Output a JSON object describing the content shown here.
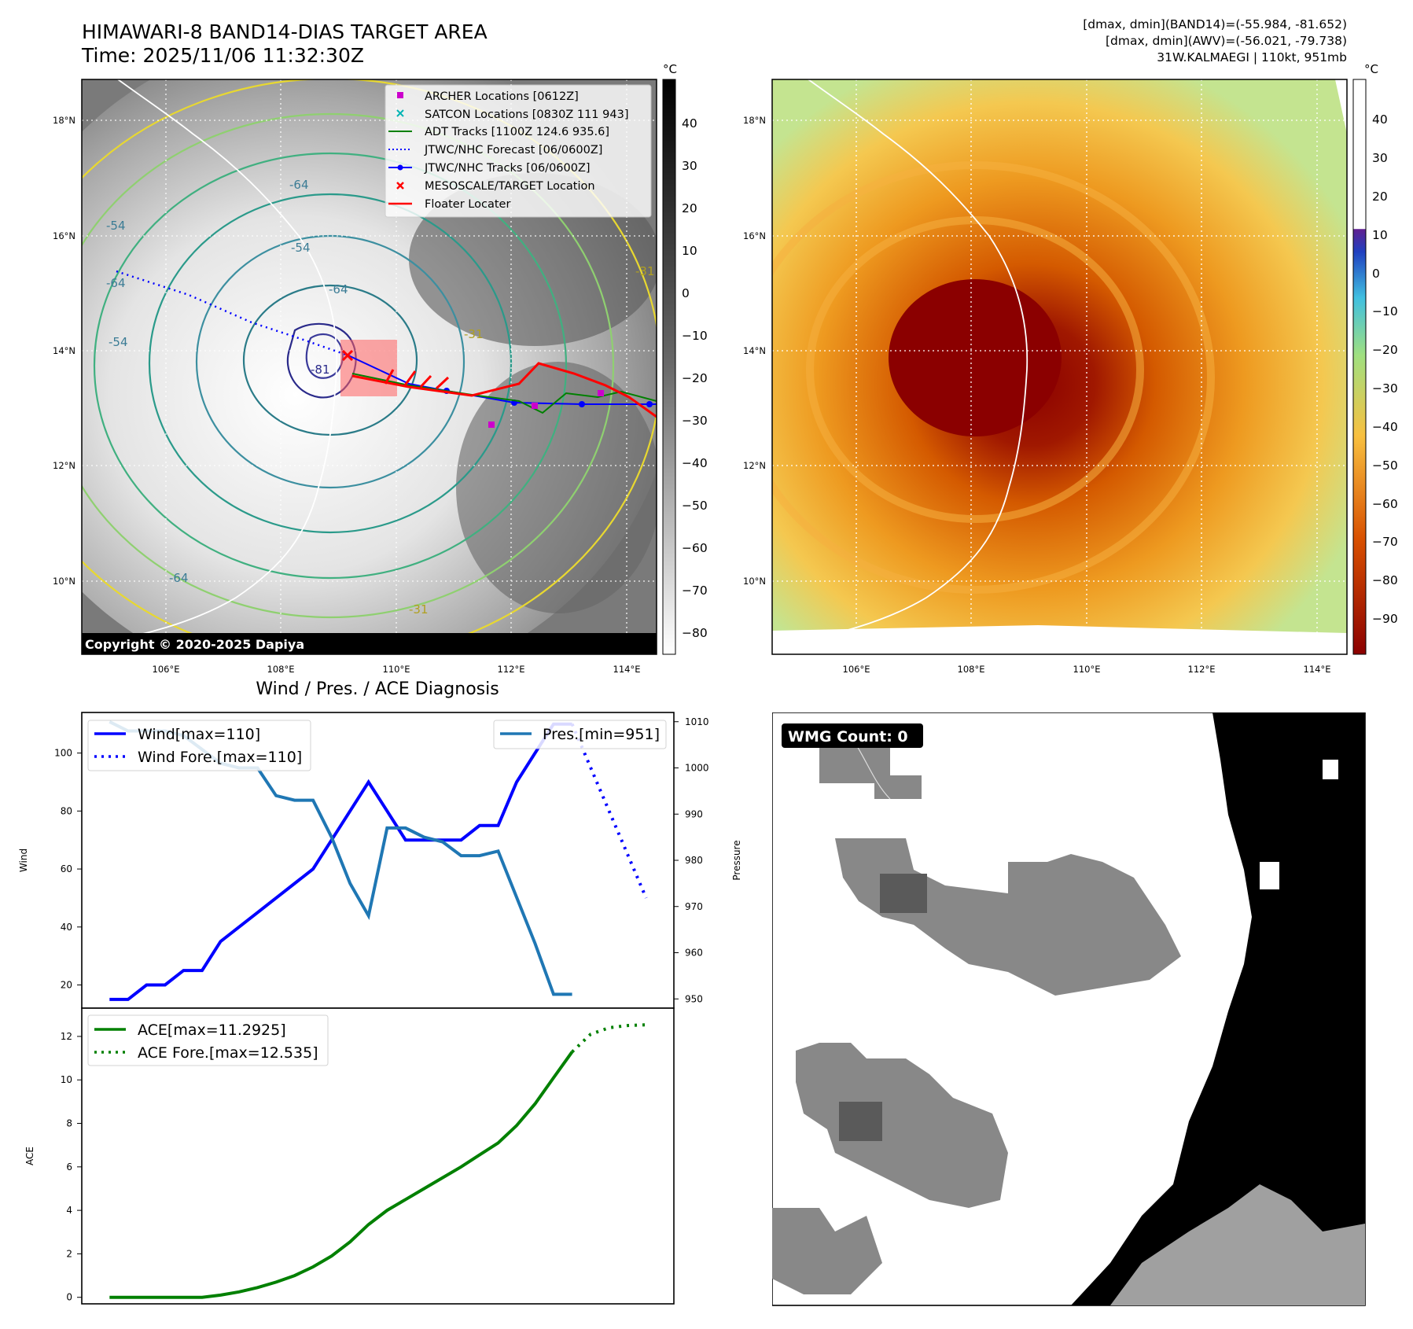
{
  "header": {
    "title_line1": "HIMAWARI-8 BAND14-DIAS TARGET AREA",
    "title_line2": "Time: 2025/11/06 11:32:30Z",
    "info_line1": "[dmax, dmin](BAND14)=(-55.984, -81.652)",
    "info_line2": "[dmax, dmin](AWV)=(-56.021, -79.738)",
    "info_line3": "31W.KALMAEGI | 110kt, 951mb"
  },
  "map_axes": {
    "lat_ticks": [
      "18°N",
      "16°N",
      "14°N",
      "12°N",
      "10°N"
    ],
    "lon_ticks": [
      "106°E",
      "108°E",
      "110°E",
      "112°E",
      "114°E"
    ]
  },
  "ir_panel": {
    "colorbar_unit": "°C",
    "colorbar_ticks": [
      "40",
      "30",
      "20",
      "10",
      "0",
      "−10",
      "−20",
      "−30",
      "−40",
      "−50",
      "−60",
      "−70",
      "−80"
    ],
    "contour_labels": [
      "-64",
      "-54",
      "-64",
      "-54",
      "-64",
      "-81",
      "-31",
      "-54",
      "-64",
      "-31",
      "-31"
    ],
    "copyright": "Copyright © 2020-2025 Dapiya",
    "legend": [
      {
        "label": "ARCHER Locations [0612Z]",
        "color": "#cc00cc",
        "marker": "square"
      },
      {
        "label": "SATCON Locations [0830Z 111 943]",
        "color": "#00b3b3",
        "marker": "x"
      },
      {
        "label": "ADT Tracks [1100Z 124.6 935.6]",
        "color": "#008000",
        "marker": "line"
      },
      {
        "label": "JTWC/NHC Forecast [06/0600Z]",
        "color": "#0000ff",
        "marker": "dotted"
      },
      {
        "label": "JTWC/NHC Tracks [06/0600Z]",
        "color": "#0000ff",
        "marker": "line-dot"
      },
      {
        "label": "MESOSCALE/TARGET Location",
        "color": "#ff0000",
        "marker": "x"
      },
      {
        "label": "Floater Locater",
        "color": "#ff0000",
        "marker": "line"
      }
    ]
  },
  "awv_panel": {
    "colorbar_unit": "°C",
    "colorbar_ticks": [
      "40",
      "30",
      "20",
      "10",
      "0",
      "−10",
      "−20",
      "−30",
      "−40",
      "−50",
      "−60",
      "−70",
      "−80",
      "−90"
    ]
  },
  "wmg_panel": {
    "badge": "WMG Count: 0"
  },
  "colors": {
    "wind": "#0000ff",
    "pressure": "#1f77b4",
    "ace": "#008000",
    "warm_eye": "#8b0000",
    "awv_outer": "#c0e080"
  },
  "chart_data": [
    {
      "type": "line",
      "title": "Wind / Pres. / ACE Diagnosis",
      "ylabel": "Wind",
      "ylim": [
        12,
        114
      ],
      "y_ticks": [
        20,
        40,
        60,
        80,
        100
      ],
      "x": [
        0,
        1,
        2,
        3,
        4,
        5,
        6,
        7,
        8,
        9,
        10,
        11,
        12,
        13,
        14,
        15,
        16,
        17,
        18,
        19,
        20,
        21,
        22,
        23,
        24,
        25,
        26,
        27,
        28,
        29
      ],
      "series": [
        {
          "name": "Wind[max=110]",
          "style": "solid",
          "color": "#0000ff",
          "x": [
            0,
            1,
            2,
            3,
            4,
            5,
            6,
            7,
            8,
            9,
            10,
            11,
            12,
            13,
            14,
            15,
            16,
            17,
            18,
            19,
            20,
            21,
            22,
            23,
            24,
            25
          ],
          "values": [
            15,
            15,
            20,
            20,
            25,
            25,
            35,
            40,
            45,
            50,
            55,
            60,
            70,
            80,
            90,
            80,
            70,
            70,
            70,
            70,
            75,
            75,
            90,
            100,
            110,
            110
          ]
        },
        {
          "name": "Wind Fore.[max=110]",
          "style": "dotted",
          "color": "#0000ff",
          "x": [
            25,
            26,
            27,
            28,
            29
          ],
          "values": [
            110,
            95,
            80,
            65,
            50
          ]
        }
      ]
    },
    {
      "type": "line",
      "ylabel": "Pressure",
      "ylim": [
        948,
        1012
      ],
      "y_ticks": [
        950,
        960,
        970,
        980,
        990,
        1000,
        1010
      ],
      "series": [
        {
          "name": "Pres.[min=951]",
          "style": "solid",
          "color": "#1f77b4",
          "x": [
            0,
            1,
            2,
            3,
            4,
            5,
            6,
            7,
            8,
            9,
            10,
            11,
            12,
            13,
            14,
            15,
            16,
            17,
            18,
            19,
            20,
            21,
            22,
            23,
            24,
            25
          ],
          "values": [
            1010,
            1008,
            1008,
            1008,
            1007,
            1004,
            1001,
            1000,
            1000,
            994,
            993,
            993,
            985,
            975,
            968,
            987,
            987,
            985,
            984,
            981,
            981,
            982,
            972,
            962,
            951,
            951
          ]
        }
      ]
    },
    {
      "type": "line",
      "ylabel": "ACE",
      "ylim": [
        -0.3,
        13.3
      ],
      "y_ticks": [
        0,
        2,
        4,
        6,
        8,
        10,
        12
      ],
      "series": [
        {
          "name": "ACE[max=11.2925]",
          "style": "solid",
          "color": "#008000",
          "x": [
            0,
            1,
            2,
            3,
            4,
            5,
            6,
            7,
            8,
            9,
            10,
            11,
            12,
            13,
            14,
            15,
            16,
            17,
            18,
            19,
            20,
            21,
            22,
            23,
            24,
            25
          ],
          "values": [
            0,
            0,
            0,
            0,
            0,
            0,
            0.1,
            0.25,
            0.45,
            0.7,
            1.0,
            1.4,
            1.9,
            2.55,
            3.35,
            4.0,
            4.5,
            5.0,
            5.5,
            6.0,
            6.55,
            7.1,
            7.9,
            8.9,
            10.1,
            11.29
          ]
        },
        {
          "name": "ACE Fore.[max=12.535]",
          "style": "dotted",
          "color": "#008000",
          "x": [
            25,
            26,
            27,
            28,
            29
          ],
          "values": [
            11.29,
            12.1,
            12.4,
            12.5,
            12.535
          ]
        }
      ]
    }
  ]
}
